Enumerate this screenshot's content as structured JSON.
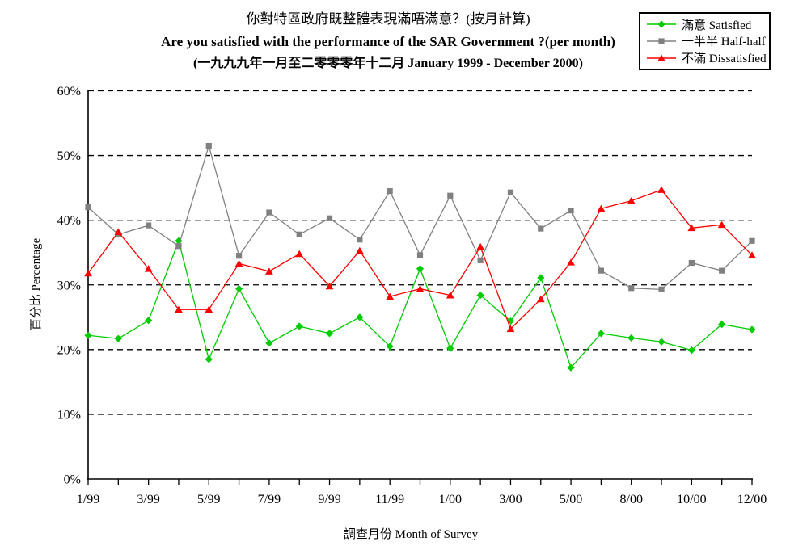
{
  "title": {
    "line1": "你對特區政府既整體表現滿唔滿意？(按月計算)",
    "line2": "Are you satisfied with the performance of the SAR Government ?(per month)",
    "line3": "(一九九九年一月至二零零零年十二月 January 1999 - December 2000)"
  },
  "chart_data": {
    "type": "line",
    "title": "你對特區政府既整體表現滿唔滿意？(按月計算) Are you satisfied with the performance of the SAR Government ?(per month) (一九九九年一月至二零零零年十二月 January 1999 - December 2000)",
    "xlabel": "調查月份 Month of Survey",
    "ylabel": "百分比 Percentage",
    "ylim": [
      0,
      60
    ],
    "y_ticks": [
      0,
      10,
      20,
      30,
      40,
      50,
      60
    ],
    "y_tick_labels": [
      "0%",
      "10%",
      "20%",
      "30%",
      "40%",
      "50%",
      "60%"
    ],
    "grid": "horizontal-dashed",
    "legend_position": "top-right",
    "n_points": 23,
    "x_tick_indices": [
      0,
      2,
      4,
      6,
      8,
      10,
      12,
      14,
      16,
      18,
      20,
      22
    ],
    "x_tick_labels": [
      "1/99",
      "3/99",
      "5/99",
      "7/99",
      "9/99",
      "11/99",
      "1/00",
      "3/00",
      "5/00",
      "8/00",
      "10/00",
      "12/00"
    ],
    "series": [
      {
        "name": "滿意 Satisfied",
        "color": "#00CC00",
        "marker": "diamond",
        "values": [
          22.2,
          21.7,
          24.5,
          36.8,
          18.5,
          29.4,
          21.0,
          23.6,
          22.5,
          25.0,
          20.5,
          32.5,
          20.2,
          28.4,
          24.4,
          31.1,
          17.2,
          22.5,
          21.8,
          21.2,
          19.9,
          23.9,
          23.1
        ]
      },
      {
        "name": "一半半 Half-half",
        "color": "#808080",
        "marker": "square",
        "values": [
          42.0,
          37.8,
          39.2,
          36.0,
          51.5,
          34.5,
          41.2,
          37.8,
          40.3,
          37.0,
          44.5,
          34.6,
          43.8,
          33.8,
          44.3,
          38.7,
          41.5,
          32.2,
          29.5,
          29.3,
          33.4,
          32.2,
          36.8
        ]
      },
      {
        "name": "不滿 Dissatisfied",
        "color": "#FF0000",
        "marker": "triangle",
        "values": [
          31.8,
          38.2,
          32.5,
          26.2,
          26.2,
          33.3,
          32.1,
          34.8,
          29.8,
          35.3,
          28.2,
          29.4,
          28.4,
          35.9,
          23.2,
          27.8,
          33.5,
          41.8,
          43.0,
          44.7,
          38.8,
          39.3,
          34.6
        ]
      }
    ]
  }
}
